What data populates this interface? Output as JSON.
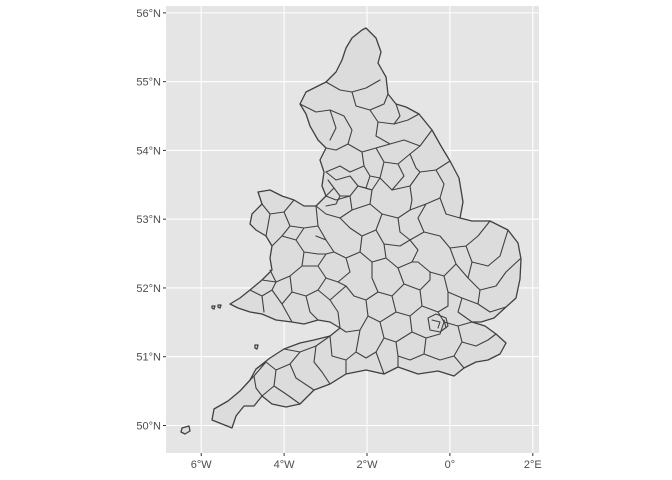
{
  "chart_data": {
    "type": "map",
    "title": "",
    "xlabel": "",
    "ylabel": "",
    "x_ticks": [
      {
        "value": -6,
        "label": "6°W"
      },
      {
        "value": -4,
        "label": "4°W"
      },
      {
        "value": -2,
        "label": "2°W"
      },
      {
        "value": 0,
        "label": "0°"
      },
      {
        "value": 2,
        "label": "2°E"
      }
    ],
    "y_ticks": [
      {
        "value": 50,
        "label": "50°N"
      },
      {
        "value": 51,
        "label": "51°N"
      },
      {
        "value": 52,
        "label": "52°N"
      },
      {
        "value": 53,
        "label": "53°N"
      },
      {
        "value": 54,
        "label": "54°N"
      },
      {
        "value": 55,
        "label": "55°N"
      },
      {
        "value": 56,
        "label": "56°N"
      }
    ],
    "xlim": [
      -6.85,
      2.15
    ],
    "ylim": [
      49.6,
      56.1
    ],
    "grid": true,
    "legend": "none",
    "colors": {
      "panel_background": "#e5e5e5",
      "grid_line": "#ffffff",
      "region_fill": "#dcdcdc",
      "region_border": "#404040",
      "tick_text": "#4d4d4d"
    }
  }
}
